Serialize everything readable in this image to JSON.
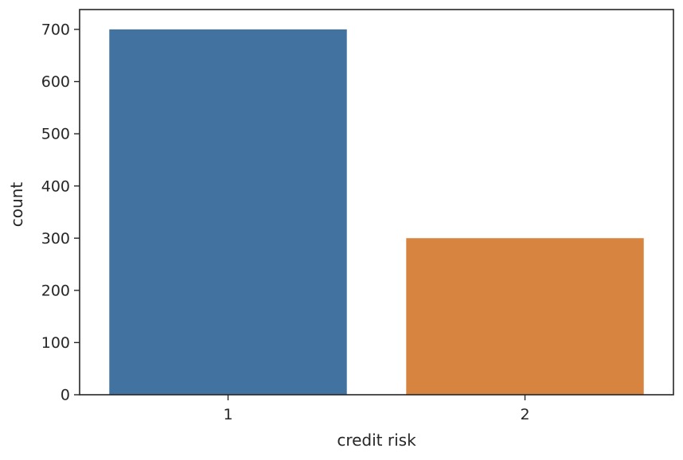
{
  "chart_data": {
    "type": "bar",
    "categories": [
      "1",
      "2"
    ],
    "values": [
      700,
      300
    ],
    "colors": [
      "#4273a0",
      "#d6843f"
    ],
    "title": "",
    "xlabel": "credit risk",
    "ylabel": "count",
    "ylim": [
      0,
      738
    ],
    "yticks": [
      0,
      100,
      200,
      300,
      400,
      500,
      600,
      700
    ],
    "ytick_labels": [
      "0",
      "100",
      "200",
      "300",
      "400",
      "500",
      "600",
      "700"
    ],
    "grid": false,
    "legend": "none"
  }
}
